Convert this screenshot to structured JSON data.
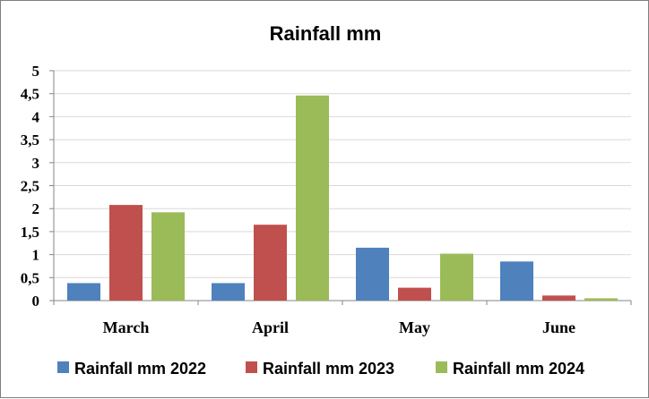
{
  "chart_data": {
    "type": "bar",
    "title": "Rainfall mm",
    "categories": [
      "March",
      "April",
      "May",
      "June"
    ],
    "series": [
      {
        "name": "Rainfall mm 2022",
        "color": "#4f81bd",
        "values": [
          0.38,
          0.38,
          1.15,
          0.85
        ]
      },
      {
        "name": "Rainfall mm 2023",
        "color": "#c0504d",
        "values": [
          2.08,
          1.65,
          0.28,
          0.11
        ]
      },
      {
        "name": "Rainfall mm 2024",
        "color": "#9bbb59",
        "values": [
          1.92,
          4.46,
          1.02,
          0.05
        ]
      }
    ],
    "yticks": [
      "0",
      "0,5",
      "1",
      "1,5",
      "2",
      "2,5",
      "3",
      "3,5",
      "4",
      "4,5",
      "5"
    ],
    "ylim": [
      0,
      5
    ],
    "xlabel": "",
    "ylabel": "",
    "grid": true,
    "legend_position": "bottom"
  }
}
